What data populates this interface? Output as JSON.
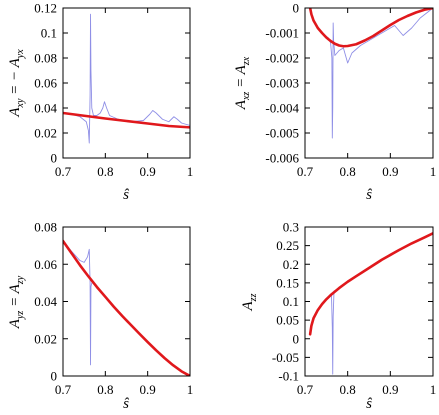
{
  "colors": {
    "model": "#e0181c",
    "data": "#8f8fe6",
    "frame": "#000000"
  },
  "chart_data": [
    {
      "id": "axy",
      "type": "line",
      "xlabel": "ŝ",
      "ylabel": "A_xy = − A_yx",
      "xlim": [
        0.7,
        1.0
      ],
      "ylim": [
        0,
        0.12
      ],
      "xticks": [
        "0.7",
        "0.8",
        "0.9",
        "1"
      ],
      "yticks": [
        "0",
        "0.02",
        "0.04",
        "0.06",
        "0.08",
        "0.1",
        "0.12"
      ],
      "grid": false,
      "series": [
        {
          "style": "thick",
          "color": "#e0181c",
          "x": [
            0.7,
            0.75,
            0.8,
            0.85,
            0.9,
            0.95,
            1.0
          ],
          "y": [
            0.036,
            0.0338,
            0.0316,
            0.0296,
            0.0276,
            0.0256,
            0.0245
          ]
        },
        {
          "style": "thin",
          "color": "#8f8fe6",
          "x": [
            0.7,
            0.72,
            0.74,
            0.755,
            0.76,
            0.762,
            0.764,
            0.765,
            0.766,
            0.768,
            0.772,
            0.78,
            0.788,
            0.794,
            0.798,
            0.803,
            0.81,
            0.83,
            0.86,
            0.89,
            0.905,
            0.912,
            0.92,
            0.935,
            0.95,
            0.962,
            0.97,
            0.98,
            0.99,
            1.0
          ],
          "y": [
            0.036,
            0.035,
            0.033,
            0.029,
            0.022,
            0.012,
            0.05,
            0.115,
            0.07,
            0.04,
            0.034,
            0.034,
            0.036,
            0.04,
            0.045,
            0.04,
            0.034,
            0.031,
            0.029,
            0.03,
            0.035,
            0.038,
            0.036,
            0.031,
            0.029,
            0.033,
            0.031,
            0.028,
            0.027,
            0.026
          ]
        }
      ]
    },
    {
      "id": "axz",
      "type": "line",
      "xlabel": "ŝ",
      "ylabel": "A_xz = A_zx",
      "xlim": [
        0.7,
        1.0
      ],
      "ylim": [
        -0.006,
        0
      ],
      "xticks": [
        "0.7",
        "0.8",
        "0.9",
        "1"
      ],
      "yticks": [
        "-0.006",
        "-0.005",
        "-0.004",
        "-0.003",
        "-0.002",
        "-0.001",
        "0"
      ],
      "grid": false,
      "series": [
        {
          "style": "thick",
          "color": "#e0181c",
          "x": [
            0.712,
            0.715,
            0.72,
            0.73,
            0.74,
            0.75,
            0.76,
            0.77,
            0.78,
            0.79,
            0.8,
            0.82,
            0.84,
            0.86,
            0.88,
            0.9,
            0.92,
            0.94,
            0.96,
            0.98,
            1.0
          ],
          "y": [
            0.0,
            -0.00025,
            -0.0005,
            -0.0008,
            -0.001,
            -0.00118,
            -0.00132,
            -0.00143,
            -0.0015,
            -0.00153,
            -0.00152,
            -0.00145,
            -0.0013,
            -0.00112,
            -0.0009,
            -0.00068,
            -0.00048,
            -0.00032,
            -0.00018,
            -7e-05,
            0.0
          ]
        },
        {
          "style": "thin",
          "color": "#8f8fe6",
          "x": [
            0.712,
            0.72,
            0.74,
            0.755,
            0.76,
            0.763,
            0.764,
            0.765,
            0.766,
            0.767,
            0.77,
            0.78,
            0.79,
            0.8,
            0.81,
            0.83,
            0.86,
            0.89,
            0.91,
            0.92,
            0.93,
            0.95,
            0.97,
            1.0
          ],
          "y": [
            0.0,
            -0.0005,
            -0.001,
            -0.0012,
            -0.0014,
            -0.002,
            -0.0052,
            -0.004,
            -0.0006,
            -0.0013,
            -0.0019,
            -0.0017,
            -0.0016,
            -0.0022,
            -0.0018,
            -0.0015,
            -0.0012,
            -0.0009,
            -0.0007,
            -0.0009,
            -0.0011,
            -0.0008,
            -0.0004,
            0.0
          ]
        }
      ]
    },
    {
      "id": "ayz",
      "type": "line",
      "xlabel": "ŝ",
      "ylabel": "A_yz = A_zy",
      "xlim": [
        0.7,
        1.0
      ],
      "ylim": [
        0,
        0.08
      ],
      "xticks": [
        "0.7",
        "0.8",
        "0.9",
        "1"
      ],
      "yticks": [
        "0",
        "0.02",
        "0.04",
        "0.06",
        "0.08"
      ],
      "grid": false,
      "series": [
        {
          "style": "thick",
          "color": "#e0181c",
          "x": [
            0.7,
            0.72,
            0.74,
            0.76,
            0.78,
            0.8,
            0.82,
            0.84,
            0.86,
            0.88,
            0.9,
            0.92,
            0.94,
            0.96,
            0.98,
            1.0
          ],
          "y": [
            0.0725,
            0.066,
            0.0595,
            0.0535,
            0.0478,
            0.0425,
            0.0372,
            0.0322,
            0.0275,
            0.0228,
            0.0182,
            0.0138,
            0.0096,
            0.0058,
            0.0025,
            0.0
          ]
        },
        {
          "style": "thin",
          "color": "#8f8fe6",
          "x": [
            0.7,
            0.72,
            0.74,
            0.75,
            0.758,
            0.762,
            0.764,
            0.765,
            0.766,
            0.768,
            0.772,
            0.78,
            0.8,
            0.84,
            0.88,
            0.92,
            0.96,
            1.0
          ],
          "y": [
            0.0725,
            0.067,
            0.062,
            0.061,
            0.064,
            0.068,
            0.05,
            0.006,
            0.048,
            0.05,
            0.05,
            0.048,
            0.0425,
            0.0322,
            0.0228,
            0.0138,
            0.0058,
            0.0
          ]
        }
      ]
    },
    {
      "id": "azz",
      "type": "line",
      "xlabel": "ŝ",
      "ylabel": "A_zz",
      "xlim": [
        0.7,
        1.0
      ],
      "ylim": [
        -0.1,
        0.3
      ],
      "xticks": [
        "0.7",
        "0.8",
        "0.9",
        "1"
      ],
      "yticks": [
        "-0.1",
        "-0.05",
        "0",
        "0.05",
        "0.1",
        "0.15",
        "0.2",
        "0.25",
        "0.3"
      ],
      "grid": false,
      "series": [
        {
          "style": "thick",
          "color": "#e0181c",
          "x": [
            0.712,
            0.715,
            0.72,
            0.73,
            0.74,
            0.75,
            0.76,
            0.78,
            0.8,
            0.82,
            0.85,
            0.88,
            0.9,
            0.92,
            0.95,
            0.98,
            1.0
          ],
          "y": [
            0.012,
            0.035,
            0.055,
            0.077,
            0.093,
            0.106,
            0.117,
            0.136,
            0.153,
            0.168,
            0.19,
            0.212,
            0.225,
            0.238,
            0.256,
            0.272,
            0.283
          ]
        },
        {
          "style": "thin",
          "color": "#8f8fe6",
          "x": [
            0.712,
            0.72,
            0.74,
            0.755,
            0.76,
            0.762,
            0.764,
            0.765,
            0.766,
            0.768,
            0.772,
            0.78,
            0.8,
            0.85,
            0.9,
            0.95,
            1.0
          ],
          "y": [
            0.012,
            0.055,
            0.093,
            0.11,
            0.118,
            0.12,
            0.03,
            -0.095,
            0.06,
            0.128,
            0.13,
            0.136,
            0.153,
            0.19,
            0.225,
            0.256,
            0.283
          ]
        }
      ]
    }
  ]
}
